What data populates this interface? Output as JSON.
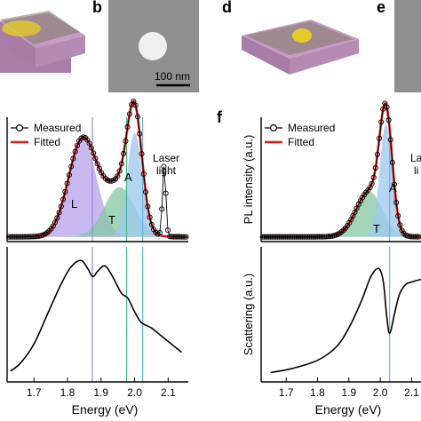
{
  "panels": {
    "b": {
      "letter": "b",
      "scale_bar": "100 nm"
    },
    "d": {
      "letter": "d"
    },
    "e": {
      "letter": "e"
    },
    "f": {
      "letter": "f"
    }
  },
  "colors": {
    "measured": "#000000",
    "fitted": "#e02020",
    "L": "#b9a4ec",
    "T": "#86c9a6",
    "A": "#9fc8ee",
    "line_L": "#9b86dc",
    "line_T": "#43b98a",
    "line_A": "#62b8e6",
    "substrate_top": "#c79bc6",
    "substrate_side": "#a97ea9",
    "gold": "#e6cc2a",
    "sem_bg": "#8f8f8f",
    "sem_particle": "#efefef"
  },
  "chart_data": [
    {
      "id": "left-pl",
      "type": "line",
      "legend": [
        "Measured",
        "Fitted"
      ],
      "legend_position": "top-left",
      "peak_labels": [
        "L",
        "T",
        "A"
      ],
      "annotation": [
        "Laser",
        "light"
      ],
      "xlim": [
        1.62,
        2.16
      ],
      "ylim": [
        0,
        1.05
      ],
      "peaks": {
        "L": {
          "center": 1.845,
          "width": 0.042,
          "amp": 0.82
        },
        "T": {
          "center": 1.955,
          "width": 0.045,
          "amp": 0.42
        },
        "A": {
          "center": 2.0,
          "width": 0.022,
          "amp": 0.88
        }
      },
      "laser": {
        "center": 2.088,
        "width": 0.005,
        "amp": 0.6
      },
      "vlines": [
        1.874,
        1.976,
        2.024
      ]
    },
    {
      "id": "left-scattering",
      "type": "line",
      "xlabel": "Energy (eV)",
      "xticks": [
        "1.7",
        "1.8",
        "1.9",
        "2.0",
        "2.1"
      ],
      "xtick_values": [
        1.7,
        1.8,
        1.9,
        2.0,
        2.1
      ],
      "xlim": [
        1.62,
        2.16
      ],
      "ylim": [
        0,
        1
      ],
      "x": [
        1.63,
        1.66,
        1.7,
        1.74,
        1.78,
        1.81,
        1.84,
        1.86,
        1.875,
        1.89,
        1.91,
        1.93,
        1.96,
        1.98,
        2.0,
        2.02,
        2.05,
        2.08,
        2.11,
        2.14
      ],
      "y": [
        0.08,
        0.14,
        0.28,
        0.5,
        0.72,
        0.85,
        0.9,
        0.84,
        0.78,
        0.82,
        0.86,
        0.8,
        0.66,
        0.62,
        0.52,
        0.44,
        0.4,
        0.34,
        0.28,
        0.22
      ],
      "vlines": [
        1.874,
        1.976,
        2.024
      ]
    },
    {
      "id": "f-pl",
      "type": "line",
      "ylabel": "PL intensity (a.u.)",
      "legend": [
        "Measured",
        "Fitted"
      ],
      "legend_position": "top-left",
      "peak_labels": [
        "T",
        "A"
      ],
      "annotation": [
        "La",
        "li"
      ],
      "xlim": [
        1.62,
        2.13
      ],
      "ylim": [
        0,
        1.05
      ],
      "peaks": {
        "T": {
          "center": 1.965,
          "width": 0.042,
          "amp": 0.38
        },
        "A": {
          "center": 2.018,
          "width": 0.02,
          "amp": 0.95
        }
      },
      "vlines": [
        2.03
      ]
    },
    {
      "id": "f-scattering",
      "type": "line",
      "ylabel": "Scattering (a.u.)",
      "xlabel": "Energy (eV)",
      "xticks": [
        "1.7",
        "1.8",
        "1.9",
        "2.0",
        "2.1"
      ],
      "xtick_values": [
        1.7,
        1.8,
        1.9,
        2.0,
        2.1
      ],
      "xlim": [
        1.62,
        2.13
      ],
      "ylim": [
        0,
        1
      ],
      "x": [
        1.65,
        1.72,
        1.8,
        1.86,
        1.9,
        1.94,
        1.97,
        1.995,
        2.01,
        2.02,
        2.03,
        2.045,
        2.06,
        2.08,
        2.1,
        2.13
      ],
      "y": [
        0.07,
        0.1,
        0.16,
        0.26,
        0.4,
        0.6,
        0.78,
        0.84,
        0.74,
        0.5,
        0.36,
        0.5,
        0.64,
        0.72,
        0.74,
        0.76
      ],
      "vlines": [
        2.03
      ]
    }
  ]
}
